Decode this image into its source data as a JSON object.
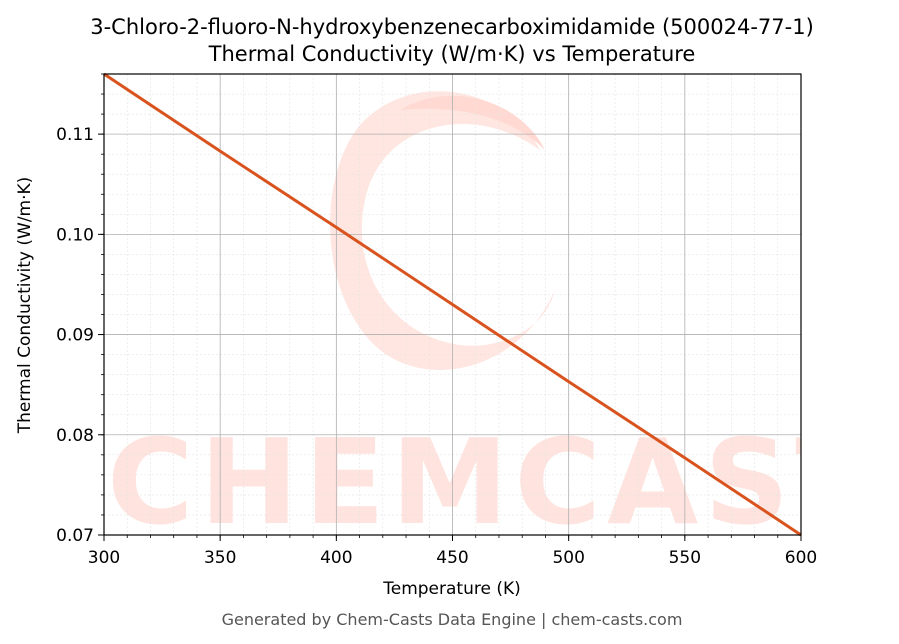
{
  "footer": "Generated by Chem-Casts Data Engine | chem-casts.com",
  "watermark_text": "CHEMCASTS",
  "colors": {
    "line": "#d9531e",
    "watermark": "#ffe3de",
    "grid_major": "#b0b0b0",
    "grid_minor": "#e3e3e3"
  },
  "chart_data": {
    "type": "line",
    "title_line1": "3-Chloro-2-fluoro-N-hydroxybenzenecarboximidamide (500024-77-1)",
    "title_line2": "Thermal Conductivity (W/m·K) vs Temperature",
    "xlabel": "Temperature (K)",
    "ylabel": "Thermal Conductivity (W/m·K)",
    "xlim": [
      300,
      600
    ],
    "ylim": [
      0.07,
      0.116
    ],
    "xticks": [
      300,
      350,
      400,
      450,
      500,
      550,
      600
    ],
    "xtick_labels": [
      "300",
      "350",
      "400",
      "450",
      "500",
      "550",
      "600"
    ],
    "yticks": [
      0.07,
      0.08,
      0.09,
      0.1,
      0.11
    ],
    "ytick_labels": [
      "0.07",
      "0.08",
      "0.09",
      "0.10",
      "0.11"
    ],
    "grid": true,
    "minor_grid": true,
    "series": [
      {
        "x": [
          300,
          350,
          400,
          450,
          500,
          550,
          600
        ],
        "y": [
          0.116,
          0.1083,
          0.1007,
          0.093,
          0.0853,
          0.0777,
          0.07
        ]
      }
    ]
  }
}
